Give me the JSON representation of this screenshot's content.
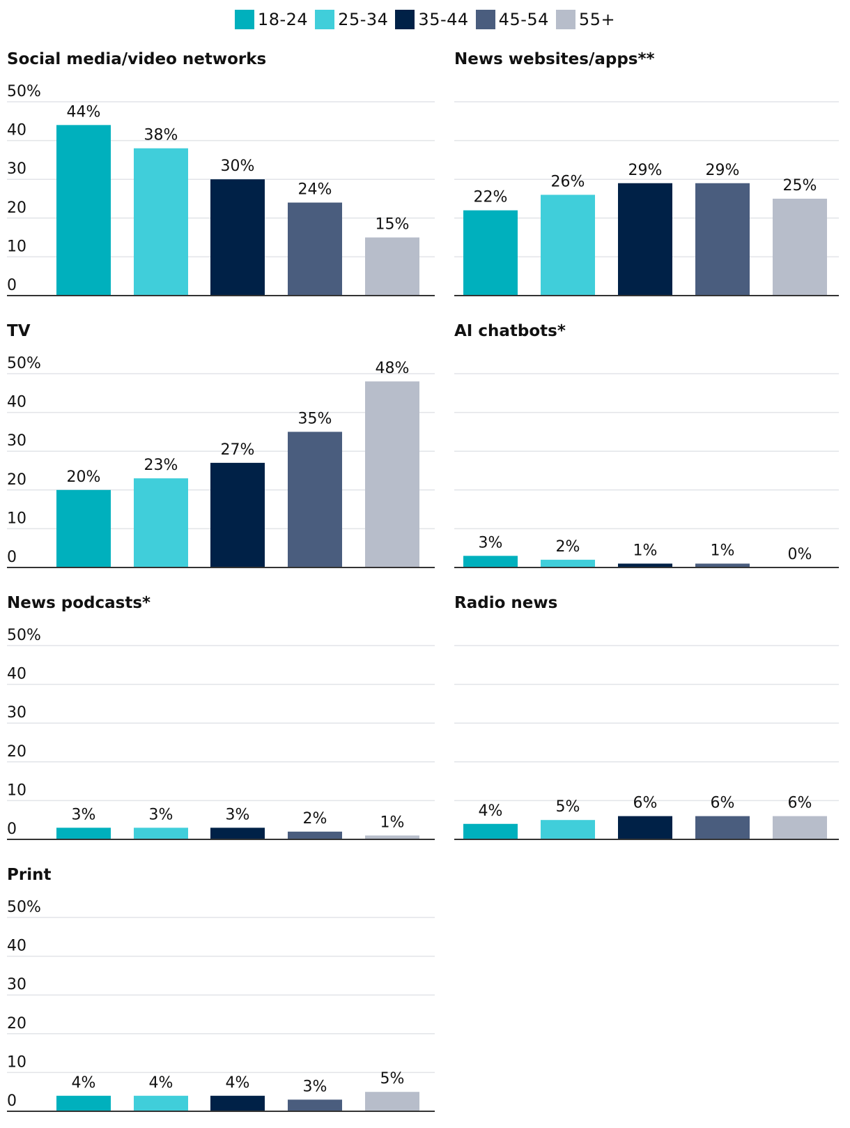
{
  "legend": {
    "items": [
      {
        "label": "18-24",
        "color": "#00b0bd"
      },
      {
        "label": "25-34",
        "color": "#40ceda"
      },
      {
        "label": "35-44",
        "color": "#002147"
      },
      {
        "label": "45-54",
        "color": "#4a5d7e"
      },
      {
        "label": "55+",
        "color": "#b7bdca"
      }
    ]
  },
  "chart_data": [
    {
      "type": "bar",
      "title": "Social media/video networks",
      "categories": [
        "18-24",
        "25-34",
        "35-44",
        "45-54",
        "55+"
      ],
      "values": [
        44,
        38,
        30,
        24,
        15
      ],
      "labels": [
        "44%",
        "38%",
        "30%",
        "24%",
        "15%"
      ],
      "yticks": [
        "50%",
        "40",
        "30",
        "20",
        "10",
        "0"
      ],
      "ylim": [
        0,
        50
      ],
      "show_yticks": true
    },
    {
      "type": "bar",
      "title": "News websites/apps**",
      "categories": [
        "18-24",
        "25-34",
        "35-44",
        "45-54",
        "55+"
      ],
      "values": [
        22,
        26,
        29,
        29,
        25
      ],
      "labels": [
        "22%",
        "26%",
        "29%",
        "29%",
        "25%"
      ],
      "ylim": [
        0,
        50
      ],
      "show_yticks": false
    },
    {
      "type": "bar",
      "title": "TV",
      "categories": [
        "18-24",
        "25-34",
        "35-44",
        "45-54",
        "55+"
      ],
      "values": [
        20,
        23,
        27,
        35,
        48
      ],
      "labels": [
        "20%",
        "23%",
        "27%",
        "35%",
        "48%"
      ],
      "yticks": [
        "50%",
        "40",
        "30",
        "20",
        "10",
        "0"
      ],
      "ylim": [
        0,
        50
      ],
      "show_yticks": true
    },
    {
      "type": "bar",
      "title": "AI chatbots*",
      "categories": [
        "18-24",
        "25-34",
        "35-44",
        "45-54",
        "55+"
      ],
      "values": [
        3,
        2,
        1,
        1,
        0
      ],
      "labels": [
        "3%",
        "2%",
        "1%",
        "1%",
        "0%"
      ],
      "ylim": [
        0,
        50
      ],
      "show_yticks": false
    },
    {
      "type": "bar",
      "title": "News podcasts*",
      "categories": [
        "18-24",
        "25-34",
        "35-44",
        "45-54",
        "55+"
      ],
      "values": [
        3,
        3,
        3,
        2,
        1
      ],
      "labels": [
        "3%",
        "3%",
        "3%",
        "2%",
        "1%"
      ],
      "yticks": [
        "50%",
        "40",
        "30",
        "20",
        "10",
        "0"
      ],
      "ylim": [
        0,
        50
      ],
      "show_yticks": true
    },
    {
      "type": "bar",
      "title": "Radio news",
      "categories": [
        "18-24",
        "25-34",
        "35-44",
        "45-54",
        "55+"
      ],
      "values": [
        4,
        5,
        6,
        6,
        6
      ],
      "labels": [
        "4%",
        "5%",
        "6%",
        "6%",
        "6%"
      ],
      "ylim": [
        0,
        50
      ],
      "show_yticks": false
    },
    {
      "type": "bar",
      "title": "Print",
      "categories": [
        "18-24",
        "25-34",
        "35-44",
        "45-54",
        "55+"
      ],
      "values": [
        4,
        4,
        4,
        3,
        5
      ],
      "labels": [
        "4%",
        "4%",
        "4%",
        "3%",
        "5%"
      ],
      "yticks": [
        "50%",
        "40",
        "30",
        "20",
        "10",
        "0"
      ],
      "ylim": [
        0,
        50
      ],
      "show_yticks": true
    }
  ]
}
